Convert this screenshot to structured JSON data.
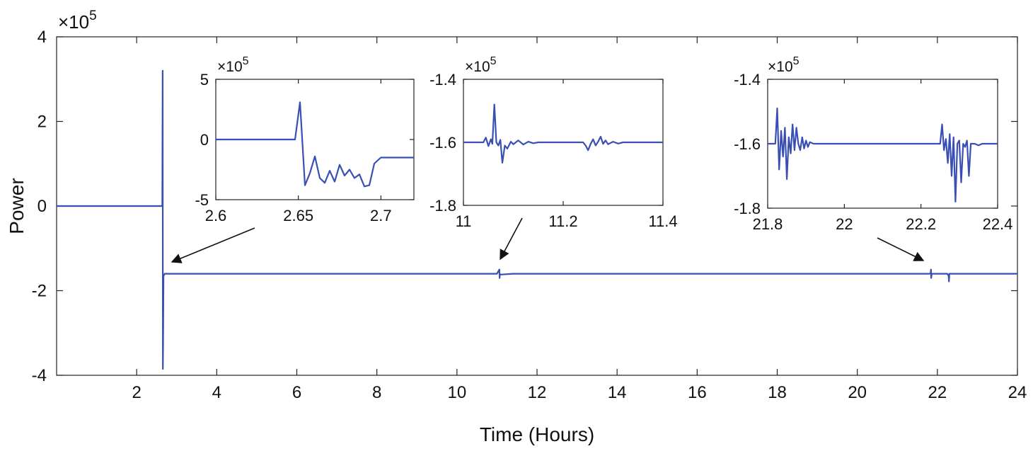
{
  "chart_data": [
    {
      "id": "main",
      "type": "line",
      "xlabel": "Time (Hours)",
      "ylabel": "Power",
      "y_multiplier": "×10",
      "y_exponent": "5",
      "xlim": [
        0,
        24
      ],
      "ylim": [
        -4,
        4
      ],
      "xticks": [
        2,
        4,
        6,
        8,
        10,
        12,
        14,
        16,
        18,
        20,
        22,
        24
      ],
      "xtick_labels": [
        "2",
        "4",
        "6",
        "8",
        "10",
        "12",
        "14",
        "16",
        "18",
        "20",
        "22",
        "24"
      ],
      "yticks": [
        -4,
        -2,
        0,
        2,
        4
      ],
      "ytick_labels": [
        "-4",
        "-2",
        "0",
        "2",
        "4"
      ],
      "grid": false,
      "line_color": "#3a4fb4",
      "series": [
        {
          "x": [
            0,
            2.64,
            2.65,
            2.655,
            2.66,
            2.67,
            2.7,
            11.0,
            11.06,
            11.065,
            11.07,
            11.08,
            11.4,
            21.83,
            21.84,
            21.845,
            21.86,
            22.25,
            22.28,
            22.29,
            22.3,
            24
          ],
          "y": [
            0,
            0,
            3.2,
            -3.85,
            -3.3,
            -1.65,
            -1.6,
            -1.6,
            -1.5,
            -1.7,
            -1.6,
            -1.62,
            -1.6,
            -1.6,
            -1.5,
            -1.7,
            -1.6,
            -1.6,
            -1.65,
            -1.78,
            -1.6,
            -1.6
          ]
        }
      ]
    },
    {
      "id": "inset1",
      "type": "line",
      "y_multiplier": "×10",
      "y_exponent": "5",
      "xlim": [
        2.6,
        2.72
      ],
      "ylim": [
        -5,
        5
      ],
      "xticks": [
        2.6,
        2.65,
        2.7
      ],
      "xtick_labels": [
        "2.6",
        "2.65",
        "2.7"
      ],
      "yticks": [
        -5,
        0,
        5
      ],
      "ytick_labels": [
        "-5",
        "0",
        "5"
      ],
      "line_color": "#3a4fb4",
      "series": [
        {
          "x": [
            2.6,
            2.648,
            2.651,
            2.654,
            2.657,
            2.66,
            2.663,
            2.666,
            2.669,
            2.672,
            2.675,
            2.678,
            2.681,
            2.684,
            2.687,
            2.69,
            2.693,
            2.696,
            2.7,
            2.72
          ],
          "y": [
            0,
            0,
            3.1,
            -3.8,
            -2.8,
            -1.4,
            -3.2,
            -3.6,
            -2.6,
            -3.5,
            -2.1,
            -3.0,
            -2.5,
            -3.2,
            -2.9,
            -3.9,
            -3.8,
            -2.0,
            -1.5,
            -1.5
          ]
        }
      ]
    },
    {
      "id": "inset2",
      "type": "line",
      "y_multiplier": "×10",
      "y_exponent": "5",
      "xlim": [
        11.0,
        11.4
      ],
      "ylim": [
        -1.8,
        -1.4
      ],
      "xticks": [
        11.0,
        11.2,
        11.4
      ],
      "xtick_labels": [
        "11",
        "11.2",
        "11.4"
      ],
      "yticks": [
        -1.8,
        -1.6,
        -1.4
      ],
      "ytick_labels": [
        "-1.8",
        "-1.6",
        "-1.4"
      ],
      "line_color": "#3a4fb4",
      "series": [
        {
          "x": [
            11.0,
            11.04,
            11.045,
            11.05,
            11.055,
            11.058,
            11.062,
            11.066,
            11.07,
            11.074,
            11.078,
            11.083,
            11.088,
            11.095,
            11.1,
            11.11,
            11.12,
            11.13,
            11.14,
            11.15,
            11.16,
            11.17,
            11.18,
            11.2,
            11.22,
            11.24,
            11.245,
            11.25,
            11.255,
            11.26,
            11.265,
            11.27,
            11.275,
            11.28,
            11.285,
            11.29,
            11.3,
            11.31,
            11.32,
            11.4
          ],
          "y": [
            -1.6,
            -1.6,
            -1.585,
            -1.612,
            -1.59,
            -1.605,
            -1.48,
            -1.6,
            -1.61,
            -1.592,
            -1.665,
            -1.61,
            -1.62,
            -1.598,
            -1.606,
            -1.594,
            -1.607,
            -1.598,
            -1.603,
            -1.6,
            -1.6,
            -1.6,
            -1.6,
            -1.6,
            -1.6,
            -1.6,
            -1.61,
            -1.625,
            -1.605,
            -1.59,
            -1.61,
            -1.598,
            -1.582,
            -1.605,
            -1.594,
            -1.606,
            -1.598,
            -1.604,
            -1.6,
            -1.6
          ]
        }
      ]
    },
    {
      "id": "inset3",
      "type": "line",
      "y_multiplier": "×10",
      "y_exponent": "5",
      "xlim": [
        21.8,
        22.4
      ],
      "ylim": [
        -1.8,
        -1.4
      ],
      "xticks": [
        21.8,
        22.0,
        22.2,
        22.4
      ],
      "xtick_labels": [
        "21.8",
        "22",
        "22.2",
        "22.4"
      ],
      "yticks": [
        -1.8,
        -1.6,
        -1.4
      ],
      "ytick_labels": [
        "-1.8",
        "-1.6",
        "-1.4"
      ],
      "line_color": "#3a4fb4",
      "series": [
        {
          "x": [
            21.8,
            21.82,
            21.825,
            21.83,
            21.835,
            21.84,
            21.845,
            21.85,
            21.855,
            21.86,
            21.865,
            21.87,
            21.875,
            21.88,
            21.885,
            21.89,
            21.895,
            21.9,
            21.905,
            21.91,
            21.92,
            21.93,
            22.0,
            22.1,
            22.2,
            22.25,
            22.255,
            22.26,
            22.265,
            22.27,
            22.275,
            22.28,
            22.285,
            22.29,
            22.295,
            22.3,
            22.305,
            22.31,
            22.315,
            22.32,
            22.325,
            22.33,
            22.34,
            22.35,
            22.36,
            22.4
          ],
          "y": [
            -1.6,
            -1.6,
            -1.49,
            -1.68,
            -1.56,
            -1.64,
            -1.55,
            -1.71,
            -1.58,
            -1.63,
            -1.54,
            -1.62,
            -1.55,
            -1.6,
            -1.62,
            -1.58,
            -1.615,
            -1.59,
            -1.61,
            -1.595,
            -1.6,
            -1.6,
            -1.6,
            -1.6,
            -1.6,
            -1.6,
            -1.54,
            -1.62,
            -1.585,
            -1.66,
            -1.57,
            -1.7,
            -1.58,
            -1.78,
            -1.6,
            -1.59,
            -1.72,
            -1.6,
            -1.61,
            -1.59,
            -1.7,
            -1.6,
            -1.6,
            -1.605,
            -1.6,
            -1.6
          ]
        }
      ]
    }
  ]
}
